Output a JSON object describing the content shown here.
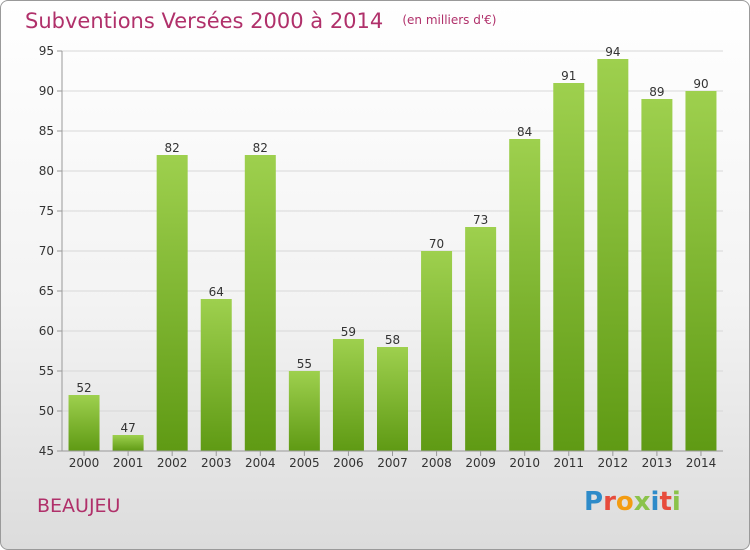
{
  "title": "Subventions Versées 2000 à 2014",
  "subtitle": "(en milliers d'€)",
  "city": "BEAUJEU",
  "logo": {
    "text": "Proxiti",
    "colors": [
      "#2e8bc9",
      "#e74c3c",
      "#f39c12",
      "#8bc34a",
      "#2e8bc9",
      "#e74c3c",
      "#8bc34a"
    ]
  },
  "chart_data": {
    "type": "bar",
    "categories": [
      "2000",
      "2001",
      "2002",
      "2003",
      "2004",
      "2005",
      "2006",
      "2007",
      "2008",
      "2009",
      "2010",
      "2011",
      "2012",
      "2013",
      "2014"
    ],
    "values": [
      52,
      47,
      82,
      64,
      82,
      55,
      59,
      58,
      70,
      73,
      84,
      91,
      94,
      89,
      90
    ],
    "ylim": [
      45,
      95
    ],
    "yticks": [
      45,
      50,
      55,
      60,
      65,
      70,
      75,
      80,
      85,
      90,
      95
    ],
    "title": "Subventions Versées 2000 à 2014",
    "bar_color_top": "#9ed04e",
    "bar_color_bottom": "#5f9a14",
    "grid": true
  }
}
